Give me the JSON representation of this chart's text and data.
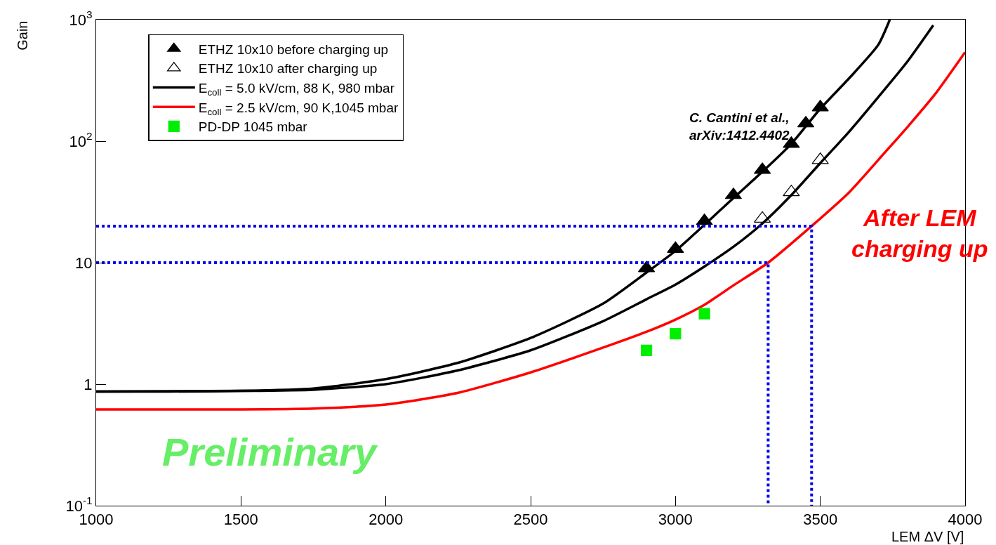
{
  "chart_data": {
    "type": "line",
    "xlabel": "LEM ΔV [V]",
    "ylabel": "Gain",
    "log": true,
    "legend": "top left",
    "xlim": [
      1000,
      4000
    ],
    "xticks": [
      1000,
      1500,
      2000,
      2500,
      3000,
      3500,
      4000
    ],
    "ylim": [
      0.1,
      1000
    ],
    "yticks": [
      {
        "value": 0.1,
        "label": "10$^{-1}$"
      },
      1,
      10,
      {
        "value": 100,
        "label": "10$^{2}$"
      },
      {
        "value": 1000,
        "label": "10$^{3}$"
      }
    ],
    "annotations": [
      "C. Cantini et al.,\narXiv:1412.4402",
      "After LEM\ncharging up",
      "Preliminary"
    ],
    "series": [
      {
        "name": "ETHZ 10x10 before charging up",
        "type": "scatter",
        "marker": "triangle",
        "color": "#000000",
        "x": [
          2900,
          3000,
          3100,
          3200,
          3300,
          3400,
          3450,
          3500
        ],
        "values": [
          9.0,
          13,
          22,
          36,
          58,
          95,
          140,
          190
        ]
      },
      {
        "name": "ETHZ 10x10 after charging up",
        "type": "scatter",
        "marker": "triangle",
        "color": "#ffffff",
        "x": [
          3300,
          3400,
          3500
        ],
        "values": [
          23,
          38,
          70
        ]
      },
      {
        "name": "E$_{coll}$ = 5.0 kV/cm, 88 K, 980 mbar",
        "marker": "none",
        "line_style": "solid",
        "color": "#000000",
        "x": [
          1000,
          1250,
          1500,
          1750,
          2000,
          2250,
          2500,
          2750,
          2900,
          3000,
          3100,
          3200,
          3300,
          3400,
          3500,
          3600,
          3700,
          3740
        ],
        "values": [
          0.87,
          0.87,
          0.88,
          0.92,
          1.1,
          1.5,
          2.4,
          4.6,
          8.3,
          12.5,
          20.5,
          34,
          56,
          95,
          185,
          330,
          620,
          1000
        ]
      },
      {
        "marker": "none",
        "line_style": "solid",
        "color": "#000000",
        "x": [
          1000,
          1500,
          1750,
          2000,
          2250,
          2500,
          2750,
          2900,
          3000,
          3100,
          3200,
          3300,
          3400,
          3500,
          3600,
          3700,
          3800,
          3890
        ],
        "values": [
          0.87,
          0.88,
          0.9,
          1.0,
          1.3,
          1.9,
          3.3,
          5.0,
          6.6,
          9.3,
          13.5,
          21,
          36,
          66,
          120,
          230,
          450,
          900
        ]
      },
      {
        "name": "E$_{coll}$ = 2.5 kV/cm, 90 K,1045 mbar",
        "marker": "none",
        "line_style": "solid",
        "color": "#ff0000",
        "x": [
          1000,
          1500,
          1750,
          2000,
          2250,
          2500,
          2750,
          2900,
          3000,
          3100,
          3200,
          3320,
          3470,
          3600,
          3700,
          3800,
          3900,
          4000
        ],
        "values": [
          0.62,
          0.62,
          0.63,
          0.68,
          0.85,
          1.25,
          2.0,
          2.7,
          3.4,
          4.5,
          6.5,
          10,
          20,
          38,
          70,
          130,
          250,
          540
        ]
      },
      {
        "name": "PD-DP 1045 mbar",
        "type": "scatter",
        "marker": "square",
        "color": "#00ee00",
        "x": [
          2900,
          3000,
          3100
        ],
        "values": [
          1.9,
          2.6,
          3.8
        ]
      },
      {
        "marker": "none",
        "line_style": "dotted",
        "color": "#0000ee",
        "x": [
          1000,
          3320,
          3320
        ],
        "values": [
          10,
          10,
          0.1
        ]
      },
      {
        "marker": "none",
        "line_style": "dotted",
        "color": "#0000ee",
        "x": [
          1000,
          3470,
          3470
        ],
        "values": [
          20,
          20,
          0.1
        ]
      }
    ]
  }
}
